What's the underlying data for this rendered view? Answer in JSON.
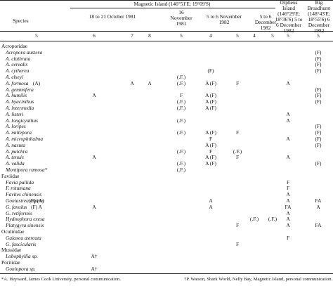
{
  "header": {
    "species": "Species",
    "site": "Magnetic Island (146°51'E; 19°09'S)",
    "groups": [
      {
        "label": "18 to 21 October 1981",
        "numbers": [
          5,
          6,
          7,
          8
        ]
      },
      {
        "label": "16 November 1981",
        "numbers": [
          5
        ]
      },
      {
        "label": "5 to 6 November 1982",
        "numbers": [
          4,
          5
        ]
      },
      {
        "label": "5 to 6 December 1982",
        "numbers": [
          4,
          5
        ]
      },
      {
        "label": "Orpheus Island (146°29'E; 18°36'S) 5 to 6 December 1982",
        "numbers": [
          5
        ]
      },
      {
        "label": "Big Broadhurst (148°43'E; 18°55'S) 6 December 1982",
        "numbers": [
          5
        ]
      }
    ]
  },
  "rows": [
    {
      "family": "Acroporidae"
    },
    {
      "species": "Acropora austera",
      "cells": [
        null,
        null,
        null,
        null,
        null,
        null,
        null,
        null,
        null,
        null,
        "(F)"
      ]
    },
    {
      "species": "A. clathrata",
      "cells": [
        null,
        null,
        null,
        null,
        null,
        null,
        null,
        null,
        null,
        null,
        "(F)"
      ]
    },
    {
      "species": "A. cerealis",
      "cells": [
        null,
        null,
        null,
        null,
        null,
        null,
        null,
        null,
        null,
        null,
        "(F)"
      ]
    },
    {
      "species": "A. cytherea",
      "cells": [
        null,
        null,
        null,
        null,
        null,
        "(F)",
        null,
        null,
        null,
        null,
        "(F)"
      ]
    },
    {
      "species": "A. elseyi",
      "cells": [
        null,
        null,
        null,
        null,
        "(.F.)",
        null,
        null,
        null,
        null,
        null,
        null
      ]
    },
    {
      "species": "A. formosa",
      "cells": [
        "(A)",
        null,
        "A",
        "A",
        "(.F.)",
        "A (F)",
        "F",
        null,
        null,
        "A",
        null
      ]
    },
    {
      "species": "A. gemmifera",
      "cells": [
        null,
        null,
        null,
        null,
        null,
        null,
        null,
        null,
        null,
        null,
        "(F)"
      ]
    },
    {
      "species": "A. humilis",
      "cells": [
        null,
        "A",
        null,
        null,
        "F",
        "A (F)",
        null,
        null,
        null,
        null,
        "(F)"
      ]
    },
    {
      "species": "A. hyacinthus",
      "cells": [
        null,
        null,
        null,
        null,
        "(.F.)",
        "A (F)",
        null,
        null,
        null,
        null,
        "(F)"
      ]
    },
    {
      "species": "A. intermedia",
      "cells": [
        null,
        null,
        null,
        null,
        "(.F.)",
        "A (F)",
        null,
        null,
        null,
        null,
        null
      ]
    },
    {
      "species": "A. listeri",
      "cells": [
        null,
        null,
        null,
        null,
        null,
        null,
        null,
        null,
        null,
        "A",
        null
      ]
    },
    {
      "species": "A. longicyathus",
      "cells": [
        null,
        null,
        null,
        null,
        "(.F.)",
        null,
        null,
        null,
        null,
        "A",
        null
      ]
    },
    {
      "species": "A. loripes",
      "cells": [
        null,
        null,
        null,
        null,
        null,
        null,
        null,
        null,
        null,
        null,
        "(F)"
      ]
    },
    {
      "species": "A. millepora",
      "cells": [
        null,
        null,
        null,
        null,
        "(.F.)",
        "A (F)",
        "F",
        null,
        null,
        null,
        "(F)"
      ]
    },
    {
      "species": "A. microphthalma",
      "cells": [
        null,
        null,
        null,
        null,
        null,
        "F",
        null,
        null,
        null,
        "A",
        "(F)"
      ]
    },
    {
      "species": "A. nasuta",
      "cells": [
        null,
        null,
        null,
        null,
        null,
        "A (F)",
        null,
        null,
        null,
        null,
        "(F)"
      ]
    },
    {
      "species": "A. pulchra",
      "cells": [
        null,
        null,
        null,
        null,
        "(.F.)",
        "F",
        "(.F.)",
        null,
        null,
        null,
        null
      ]
    },
    {
      "species": "A. tenuis",
      "cells": [
        null,
        "A",
        null,
        null,
        null,
        "A (F)",
        "F",
        null,
        null,
        "A",
        null
      ]
    },
    {
      "species": "A. valida",
      "cells": [
        null,
        null,
        null,
        null,
        "(.F.)",
        "A (F)",
        null,
        null,
        null,
        null,
        "(F)"
      ]
    },
    {
      "species": "Montipora ramosa*",
      "cells": [
        null,
        null,
        null,
        null,
        "(.F.)",
        null,
        null,
        null,
        null,
        null,
        null
      ]
    },
    {
      "family": "Faviidae"
    },
    {
      "species": "Favia pallida",
      "cells": [
        null,
        null,
        null,
        null,
        null,
        null,
        null,
        null,
        null,
        "F",
        null
      ]
    },
    {
      "species": "F. rotumana",
      "cells": [
        null,
        null,
        null,
        null,
        null,
        null,
        null,
        null,
        null,
        "F",
        null
      ]
    },
    {
      "species": "Favites chinensis",
      "cells": [
        null,
        null,
        null,
        null,
        null,
        null,
        null,
        null,
        null,
        "A",
        null
      ]
    },
    {
      "species": "Goniastrea aspera",
      "cells": [
        "(F) (A)",
        null,
        null,
        null,
        null,
        "A",
        null,
        null,
        null,
        "A",
        "FA"
      ]
    },
    {
      "species": "G. favulus",
      "cells": [
        "(F) A",
        "A",
        null,
        null,
        null,
        "A",
        null,
        null,
        null,
        "FA",
        "A"
      ]
    },
    {
      "species": "G. retiformis",
      "cells": [
        null,
        null,
        null,
        null,
        null,
        null,
        null,
        null,
        null,
        "A",
        null
      ]
    },
    {
      "species": "Hydnophora exesa",
      "cells": [
        null,
        null,
        null,
        null,
        null,
        null,
        null,
        "(.F.)",
        "(.F.)",
        "A",
        null
      ]
    },
    {
      "species": "Platygyra sinensis",
      "cells": [
        null,
        null,
        null,
        null,
        null,
        null,
        "F",
        null,
        null,
        "A",
        "FA"
      ]
    },
    {
      "family": "Oculinidae"
    },
    {
      "species": "Galaxea astreata",
      "cells": [
        null,
        null,
        null,
        null,
        null,
        null,
        null,
        null,
        null,
        "F",
        null
      ]
    },
    {
      "species": "G. fascicularis",
      "cells": [
        null,
        null,
        null,
        null,
        null,
        null,
        "F",
        null,
        null,
        null,
        null
      ]
    },
    {
      "family": "Mussidae"
    },
    {
      "species": "Lobophyllia sp.",
      "cells": [
        null,
        "A†",
        null,
        null,
        null,
        null,
        null,
        null,
        null,
        null,
        null
      ]
    },
    {
      "family": "Poritidae"
    },
    {
      "species": "Goniopora sp.",
      "cells": [
        null,
        "A†",
        null,
        null,
        null,
        null,
        null,
        null,
        null,
        null,
        null
      ]
    }
  ],
  "footnotes": [
    "*A. Heyward, James Cook University, personal communication.",
    "†P. Watson, Shark World, Nelly Bay, Magnetic Island, personal communication."
  ]
}
